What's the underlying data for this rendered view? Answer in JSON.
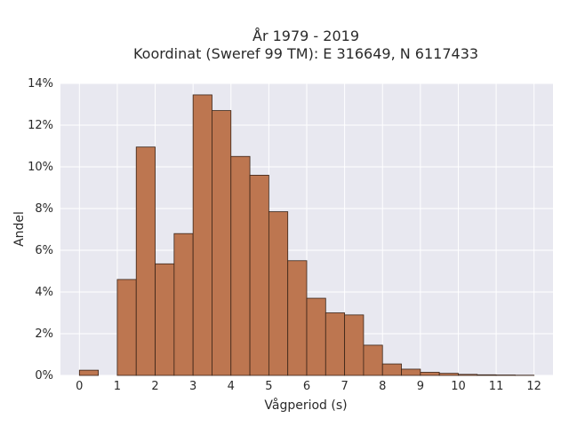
{
  "chart_data": {
    "type": "bar",
    "title_line1": "År 1979 - 2019",
    "title_line2": "Koordinat (Sweref 99 TM): E 316649, N 6117433",
    "xlabel": "Vågperiod (s)",
    "ylabel": "Andel",
    "xlim": [
      -0.5,
      12.5
    ],
    "ylim": [
      0,
      14
    ],
    "bin_width": 0.5,
    "xticks": [
      "0",
      "1",
      "2",
      "3",
      "4",
      "5",
      "6",
      "7",
      "8",
      "9",
      "10",
      "11",
      "12"
    ],
    "yticks": [
      "0%",
      "2%",
      "4%",
      "6%",
      "8%",
      "10%",
      "12%",
      "14%"
    ],
    "grid": true,
    "bins": [
      {
        "x": 0.25,
        "value": 0.25
      },
      {
        "x": 1.25,
        "value": 4.6
      },
      {
        "x": 1.75,
        "value": 10.95
      },
      {
        "x": 2.25,
        "value": 5.35
      },
      {
        "x": 2.75,
        "value": 6.8
      },
      {
        "x": 3.25,
        "value": 13.45
      },
      {
        "x": 3.75,
        "value": 12.7
      },
      {
        "x": 4.25,
        "value": 10.5
      },
      {
        "x": 4.75,
        "value": 9.6
      },
      {
        "x": 5.25,
        "value": 7.85
      },
      {
        "x": 5.75,
        "value": 5.5
      },
      {
        "x": 6.25,
        "value": 3.7
      },
      {
        "x": 6.75,
        "value": 3.0
      },
      {
        "x": 7.25,
        "value": 2.9
      },
      {
        "x": 7.75,
        "value": 1.45
      },
      {
        "x": 8.25,
        "value": 0.55
      },
      {
        "x": 8.75,
        "value": 0.3
      },
      {
        "x": 9.25,
        "value": 0.15
      },
      {
        "x": 9.75,
        "value": 0.1
      },
      {
        "x": 10.25,
        "value": 0.05
      },
      {
        "x": 10.75,
        "value": 0.03
      },
      {
        "x": 11.25,
        "value": 0.02
      },
      {
        "x": 11.75,
        "value": 0.01
      }
    ],
    "colors": {
      "bar_fill": "#bd7650",
      "bar_edge": "#3a2418",
      "plot_bg": "#e8e8f0",
      "grid": "#ffffff"
    }
  }
}
